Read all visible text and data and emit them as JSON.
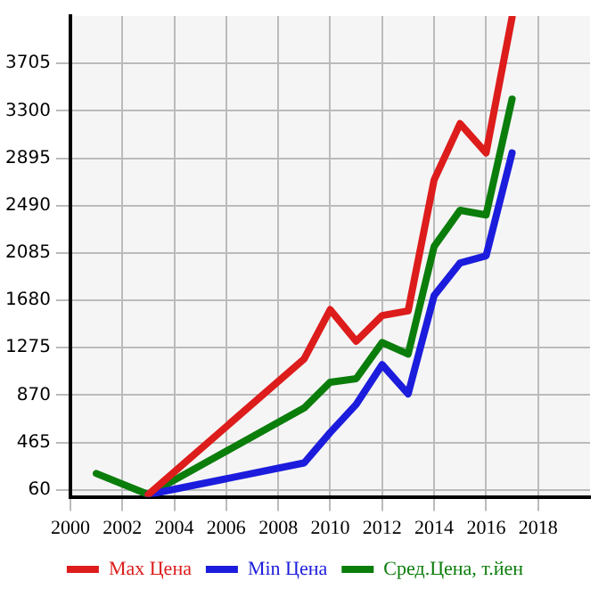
{
  "chart_data": {
    "type": "line",
    "xlim": [
      2000,
      2020
    ],
    "xticks": [
      2000,
      2002,
      2004,
      2006,
      2008,
      2010,
      2012,
      2014,
      2016,
      2018
    ],
    "ylim": [
      0,
      4110
    ],
    "yticks": [
      60,
      465,
      870,
      1275,
      1680,
      2085,
      2490,
      2895,
      3300,
      3705
    ],
    "grid": true,
    "legend": "bottom",
    "marker": "none",
    "line_style": "solid",
    "series": [
      {
        "name": "Max Цена",
        "color": "#dd1c1c",
        "x": [
          2003,
          2009,
          2010,
          2011,
          2012,
          2013,
          2014,
          2015,
          2016,
          2017
        ],
        "values": [
          20,
          1180,
          1600,
          1330,
          1550,
          1590,
          2710,
          3190,
          2940,
          4100
        ]
      },
      {
        "name": "Min Цена",
        "color": "#1c1cdd",
        "x": [
          2003,
          2009,
          2010,
          2011,
          2012,
          2013,
          2014,
          2015,
          2016,
          2017
        ],
        "values": [
          20,
          290,
          550,
          790,
          1130,
          880,
          1720,
          2000,
          2060,
          2940
        ]
      },
      {
        "name": "Сред.Цена, т.йен",
        "color": "#0b7d0b",
        "x": [
          2001,
          2003,
          2009,
          2010,
          2011,
          2012,
          2013,
          2014,
          2015,
          2016,
          2017
        ],
        "values": [
          200,
          20,
          760,
          980,
          1010,
          1320,
          1220,
          2140,
          2450,
          2410,
          3400
        ]
      }
    ]
  }
}
